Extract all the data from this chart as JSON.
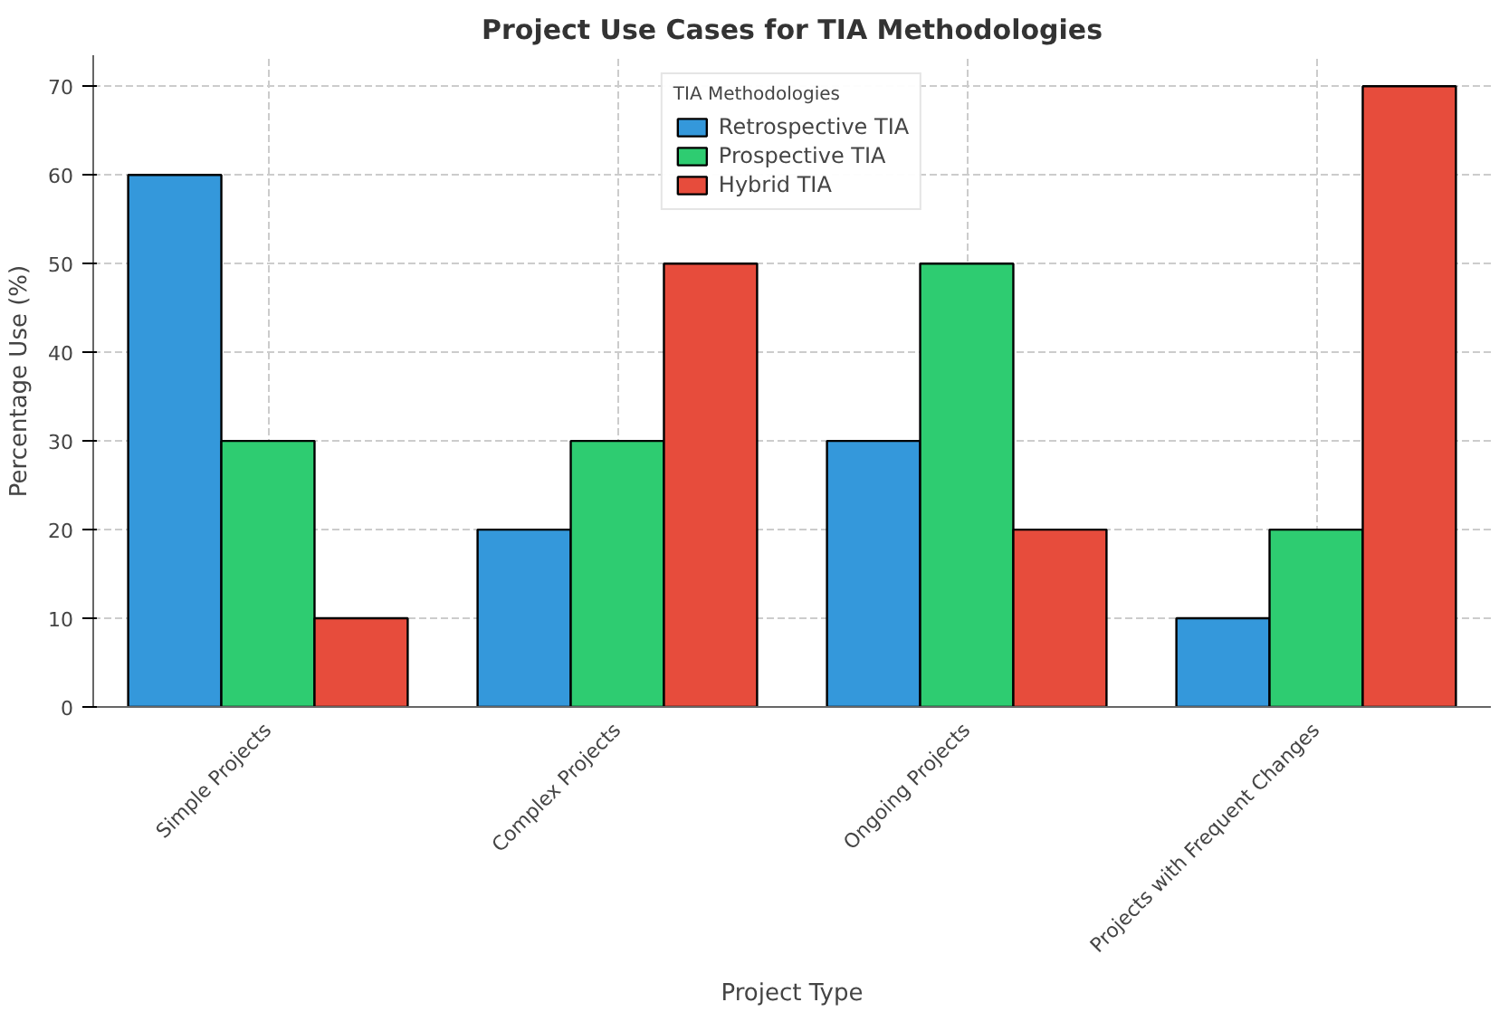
{
  "chart_data": {
    "type": "bar",
    "title": "Project Use Cases for TIA Methodologies",
    "xlabel": "Project Type",
    "ylabel": "Percentage Use (%)",
    "legend_title": "TIA Methodologies",
    "categories": [
      "Simple Projects",
      "Complex Projects",
      "Ongoing Projects",
      "Projects with Frequent Changes"
    ],
    "series": [
      {
        "name": "Retrospective TIA",
        "color": "#3498db",
        "values": [
          60,
          20,
          30,
          10
        ]
      },
      {
        "name": "Prospective TIA",
        "color": "#2ecc71",
        "values": [
          30,
          30,
          50,
          20
        ]
      },
      {
        "name": "Hybrid TIA",
        "color": "#e74c3c",
        "values": [
          10,
          50,
          20,
          70
        ]
      }
    ],
    "ylim": [
      0,
      73.5
    ],
    "yticks": [
      0,
      10,
      20,
      30,
      40,
      50,
      60,
      70
    ],
    "grid": true,
    "legend": "top"
  }
}
